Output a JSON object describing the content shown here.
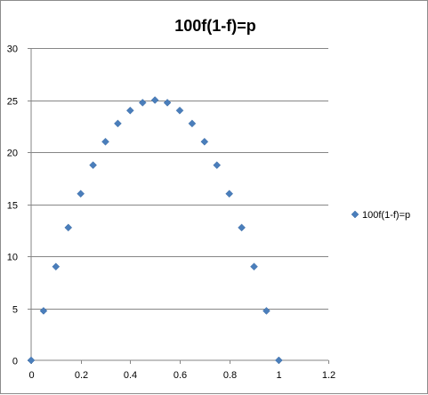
{
  "chart_data": {
    "type": "scatter",
    "title": "100f(1-f)=p",
    "xlabel": "",
    "ylabel": "",
    "xlim": [
      0,
      1.2
    ],
    "ylim": [
      0,
      30
    ],
    "x_ticks": [
      0,
      0.2,
      0.4,
      0.6,
      0.8,
      1,
      1.2
    ],
    "x_tick_labels": [
      "0",
      "0.2",
      "0.4",
      "0.6",
      "0.8",
      "1",
      "1.2"
    ],
    "y_ticks": [
      0,
      5,
      10,
      15,
      20,
      25,
      30
    ],
    "y_tick_labels": [
      "0",
      "5",
      "10",
      "15",
      "20",
      "25",
      "30"
    ],
    "grid": "horizontal major gridlines",
    "legend_position": "right",
    "series": [
      {
        "name": "100f(1-f)=p",
        "color": "#4a7ebb",
        "marker": "diamond",
        "x": [
          0,
          0.05,
          0.1,
          0.15,
          0.2,
          0.25,
          0.3,
          0.35,
          0.4,
          0.45,
          0.5,
          0.55,
          0.6,
          0.65,
          0.7,
          0.75,
          0.8,
          0.85,
          0.9,
          0.95,
          1
        ],
        "y": [
          0,
          4.75,
          9,
          12.75,
          16,
          18.75,
          21,
          22.75,
          24,
          24.75,
          25,
          24.75,
          24,
          22.75,
          21,
          18.75,
          16,
          12.75,
          9,
          4.75,
          0
        ]
      }
    ]
  }
}
